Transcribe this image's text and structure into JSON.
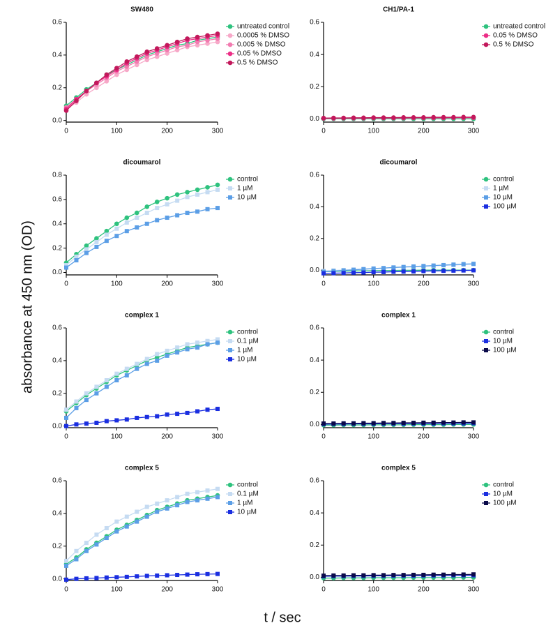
{
  "figure": {
    "ylabel": "absorbance at 450 nm  (OD)",
    "xlabel": "t / sec"
  },
  "chart_data": [
    {
      "type": "line",
      "title": "SW480",
      "legend": "right",
      "x": [
        0,
        20,
        40,
        60,
        80,
        100,
        120,
        140,
        160,
        180,
        200,
        220,
        240,
        260,
        280,
        300
      ],
      "xlim": [
        0,
        300
      ],
      "xticks": [
        0,
        100,
        200,
        300
      ],
      "ylim": [
        -0.01,
        0.6
      ],
      "yticks": [
        {
          "value": 0,
          "label": "0.0"
        },
        0.2,
        0.4,
        0.6
      ],
      "series": [
        {
          "name": "untreated control",
          "color": "#2ec27e",
          "marker": "circle",
          "values": [
            0.09,
            0.14,
            0.19,
            0.23,
            0.28,
            0.31,
            0.34,
            0.37,
            0.4,
            0.42,
            0.44,
            0.46,
            0.47,
            0.49,
            0.5,
            0.51
          ]
        },
        {
          "name": "0.0005 % DMSO",
          "color": "#f7a8c8",
          "marker": "circle",
          "values": [
            0.07,
            0.11,
            0.16,
            0.2,
            0.24,
            0.28,
            0.31,
            0.34,
            0.37,
            0.39,
            0.41,
            0.43,
            0.45,
            0.46,
            0.47,
            0.48
          ]
        },
        {
          "name": "0.005 % DMSO",
          "color": "#f27bb0",
          "marker": "circle",
          "values": [
            0.08,
            0.13,
            0.18,
            0.22,
            0.26,
            0.3,
            0.33,
            0.36,
            0.39,
            0.41,
            0.43,
            0.45,
            0.46,
            0.48,
            0.49,
            0.5
          ]
        },
        {
          "name": "0.05 % DMSO",
          "color": "#ec2d86",
          "marker": "circle",
          "values": [
            0.07,
            0.13,
            0.18,
            0.23,
            0.27,
            0.31,
            0.35,
            0.38,
            0.41,
            0.43,
            0.45,
            0.47,
            0.49,
            0.5,
            0.51,
            0.52
          ]
        },
        {
          "name": "0.5 % DMSO",
          "color": "#c2185b",
          "marker": "circle",
          "values": [
            0.06,
            0.12,
            0.18,
            0.23,
            0.28,
            0.32,
            0.36,
            0.39,
            0.42,
            0.44,
            0.46,
            0.48,
            0.5,
            0.51,
            0.52,
            0.53
          ]
        }
      ]
    },
    {
      "type": "line",
      "title": "CH1/PA-1",
      "legend": "right",
      "x": [
        0,
        20,
        40,
        60,
        80,
        100,
        120,
        140,
        160,
        180,
        200,
        220,
        240,
        260,
        280,
        300
      ],
      "xlim": [
        0,
        300
      ],
      "xticks": [
        0,
        100,
        200,
        300
      ],
      "ylim": [
        -0.02,
        0.6
      ],
      "yticks": [
        {
          "value": 0,
          "label": "0.0"
        },
        0.2,
        0.4,
        0.6
      ],
      "series": [
        {
          "name": "untreated control",
          "color": "#2ec27e",
          "marker": "circle",
          "values": [
            0,
            0,
            0,
            0,
            0,
            0,
            0,
            0,
            0,
            0,
            0,
            0,
            0,
            0,
            0,
            0
          ]
        },
        {
          "name": "0.05 % DMSO",
          "color": "#ec2d86",
          "marker": "circle",
          "values": [
            0.003,
            0.003,
            0.004,
            0.004,
            0.004,
            0.005,
            0.005,
            0.005,
            0.005,
            0.006,
            0.006,
            0.006,
            0.006,
            0.007,
            0.007,
            0.007
          ]
        },
        {
          "name": "0.5 % DMSO",
          "color": "#c2185b",
          "marker": "circle",
          "values": [
            0.005,
            0.006,
            0.006,
            0.007,
            0.007,
            0.008,
            0.008,
            0.008,
            0.009,
            0.009,
            0.009,
            0.01,
            0.01,
            0.01,
            0.011,
            0.011
          ]
        }
      ]
    },
    {
      "type": "line",
      "title": "dicoumarol",
      "legend": "right",
      "x": [
        0,
        20,
        40,
        60,
        80,
        100,
        120,
        140,
        160,
        180,
        200,
        220,
        240,
        260,
        280,
        300
      ],
      "xlim": [
        0,
        300
      ],
      "xticks": [
        0,
        100,
        200,
        300
      ],
      "ylim": [
        -0.02,
        0.8
      ],
      "yticks": [
        {
          "value": 0,
          "label": "0.0"
        },
        0.2,
        0.4,
        0.6,
        0.8
      ],
      "series": [
        {
          "name": "control",
          "color": "#2ec27e",
          "marker": "circle",
          "values": [
            0.08,
            0.15,
            0.22,
            0.28,
            0.34,
            0.4,
            0.45,
            0.49,
            0.54,
            0.58,
            0.61,
            0.64,
            0.66,
            0.68,
            0.7,
            0.72
          ]
        },
        {
          "name": "1 µM",
          "color": "#c5dbf2",
          "marker": "square",
          "values": [
            0.06,
            0.13,
            0.19,
            0.25,
            0.31,
            0.36,
            0.41,
            0.45,
            0.49,
            0.53,
            0.56,
            0.59,
            0.62,
            0.64,
            0.66,
            0.68
          ]
        },
        {
          "name": "10 µM",
          "color": "#5b9ee6",
          "marker": "square",
          "values": [
            0.04,
            0.1,
            0.16,
            0.21,
            0.26,
            0.3,
            0.34,
            0.37,
            0.4,
            0.43,
            0.45,
            0.47,
            0.49,
            0.5,
            0.52,
            0.53
          ]
        }
      ]
    },
    {
      "type": "line",
      "title": "dicoumarol",
      "legend": "right",
      "x": [
        0,
        20,
        40,
        60,
        80,
        100,
        120,
        140,
        160,
        180,
        200,
        220,
        240,
        260,
        280,
        300
      ],
      "xlim": [
        0,
        300
      ],
      "xticks": [
        0,
        100,
        200,
        300
      ],
      "ylim": [
        -0.03,
        0.6
      ],
      "yticks": [
        {
          "value": 0,
          "label": "0.0"
        },
        0.2,
        0.4,
        0.6
      ],
      "series": [
        {
          "name": "control",
          "color": "#2ec27e",
          "marker": "circle",
          "values": [
            -0.01,
            -0.008,
            -0.006,
            -0.005,
            -0.004,
            -0.003,
            -0.002,
            -0.002,
            -0.001,
            -0.001,
            0,
            0,
            0,
            0,
            0,
            0
          ]
        },
        {
          "name": "1 µM",
          "color": "#c5dbf2",
          "marker": "square",
          "values": [
            -0.005,
            -0.002,
            0.001,
            0.004,
            0.007,
            0.01,
            0.013,
            0.016,
            0.018,
            0.021,
            0.024,
            0.027,
            0.03,
            0.032,
            0.035,
            0.038
          ]
        },
        {
          "name": "10 µM",
          "color": "#5b9ee6",
          "marker": "square",
          "values": [
            -0.01,
            -0.006,
            -0.002,
            0.002,
            0.006,
            0.01,
            0.013,
            0.017,
            0.02,
            0.023,
            0.026,
            0.029,
            0.032,
            0.035,
            0.038,
            0.04
          ]
        },
        {
          "name": "100 µM",
          "color": "#1a2ee0",
          "marker": "square",
          "values": [
            -0.02,
            -0.019,
            -0.018,
            -0.016,
            -0.015,
            -0.013,
            -0.012,
            -0.01,
            -0.009,
            -0.008,
            -0.006,
            -0.005,
            -0.004,
            -0.003,
            -0.002,
            -0.001
          ]
        }
      ]
    },
    {
      "type": "line",
      "title": "complex 1",
      "legend": "right",
      "x": [
        0,
        20,
        40,
        60,
        80,
        100,
        120,
        140,
        160,
        180,
        200,
        220,
        240,
        260,
        280,
        300
      ],
      "xlim": [
        0,
        300
      ],
      "xticks": [
        0,
        100,
        200,
        300
      ],
      "ylim": [
        -0.01,
        0.6
      ],
      "yticks": [
        {
          "value": 0,
          "label": "0.0"
        },
        0.2,
        0.4,
        0.6
      ],
      "series": [
        {
          "name": "control",
          "color": "#2ec27e",
          "marker": "circle",
          "values": [
            0.09,
            0.14,
            0.19,
            0.23,
            0.27,
            0.31,
            0.34,
            0.37,
            0.4,
            0.42,
            0.44,
            0.46,
            0.48,
            0.49,
            0.5,
            0.51
          ]
        },
        {
          "name": "0.1 µM",
          "color": "#c5dbf2",
          "marker": "square",
          "values": [
            0.1,
            0.15,
            0.2,
            0.24,
            0.28,
            0.32,
            0.35,
            0.38,
            0.41,
            0.44,
            0.46,
            0.48,
            0.5,
            0.51,
            0.52,
            0.53
          ]
        },
        {
          "name": "1 µM",
          "color": "#5b9ee6",
          "marker": "square",
          "values": [
            0.05,
            0.11,
            0.16,
            0.2,
            0.24,
            0.28,
            0.31,
            0.35,
            0.38,
            0.4,
            0.43,
            0.45,
            0.47,
            0.48,
            0.5,
            0.51
          ]
        },
        {
          "name": "10 µM",
          "color": "#1a2ee0",
          "marker": "square",
          "values": [
            0.0,
            0.01,
            0.015,
            0.02,
            0.03,
            0.035,
            0.04,
            0.05,
            0.055,
            0.06,
            0.07,
            0.075,
            0.08,
            0.09,
            0.1,
            0.105
          ]
        }
      ]
    },
    {
      "type": "line",
      "title": "complex 1",
      "legend": "right",
      "x": [
        0,
        20,
        40,
        60,
        80,
        100,
        120,
        140,
        160,
        180,
        200,
        220,
        240,
        260,
        280,
        300
      ],
      "xlim": [
        0,
        300
      ],
      "xticks": [
        0,
        100,
        200,
        300
      ],
      "ylim": [
        -0.02,
        0.6
      ],
      "yticks": [
        {
          "value": 0,
          "label": "0.0"
        },
        0.2,
        0.4,
        0.6
      ],
      "series": [
        {
          "name": "control",
          "color": "#2ec27e",
          "marker": "circle",
          "values": [
            -0.004,
            -0.004,
            -0.003,
            -0.003,
            -0.003,
            -0.002,
            -0.002,
            -0.002,
            -0.002,
            -0.001,
            -0.001,
            -0.001,
            -0.001,
            0,
            0,
            0
          ]
        },
        {
          "name": "10 µM",
          "color": "#1a2ee0",
          "marker": "square",
          "values": [
            0.002,
            0.003,
            0.003,
            0.004,
            0.004,
            0.004,
            0.005,
            0.005,
            0.005,
            0.006,
            0.006,
            0.006,
            0.007,
            0.007,
            0.007,
            0.008
          ]
        },
        {
          "name": "100 µM",
          "color": "#0a0a4a",
          "marker": "square",
          "values": [
            0.006,
            0.006,
            0.007,
            0.007,
            0.008,
            0.008,
            0.009,
            0.009,
            0.01,
            0.01,
            0.011,
            0.011,
            0.012,
            0.012,
            0.013,
            0.013
          ]
        }
      ]
    },
    {
      "type": "line",
      "title": "complex 5",
      "legend": "right",
      "x": [
        0,
        20,
        40,
        60,
        80,
        100,
        120,
        140,
        160,
        180,
        200,
        220,
        240,
        260,
        280,
        300
      ],
      "xlim": [
        0,
        300
      ],
      "xticks": [
        0,
        100,
        200,
        300
      ],
      "ylim": [
        -0.01,
        0.6
      ],
      "yticks": [
        {
          "value": 0,
          "label": "0.0"
        },
        0.2,
        0.4,
        0.6
      ],
      "series": [
        {
          "name": "control",
          "color": "#2ec27e",
          "marker": "circle",
          "values": [
            0.09,
            0.13,
            0.18,
            0.22,
            0.26,
            0.3,
            0.33,
            0.36,
            0.39,
            0.42,
            0.44,
            0.46,
            0.48,
            0.49,
            0.5,
            0.51
          ]
        },
        {
          "name": "0.1 µM",
          "color": "#c5dbf2",
          "marker": "square",
          "values": [
            0.11,
            0.17,
            0.22,
            0.27,
            0.31,
            0.35,
            0.38,
            0.41,
            0.44,
            0.46,
            0.48,
            0.5,
            0.52,
            0.53,
            0.54,
            0.55
          ]
        },
        {
          "name": "1 µM",
          "color": "#5b9ee6",
          "marker": "square",
          "values": [
            0.08,
            0.12,
            0.17,
            0.21,
            0.25,
            0.29,
            0.32,
            0.35,
            0.38,
            0.41,
            0.43,
            0.45,
            0.47,
            0.48,
            0.49,
            0.5
          ]
        },
        {
          "name": "10 µM",
          "color": "#1a2ee0",
          "marker": "square",
          "values": [
            -0.005,
            0.0,
            0.003,
            0.005,
            0.008,
            0.01,
            0.012,
            0.015,
            0.018,
            0.02,
            0.022,
            0.024,
            0.026,
            0.028,
            0.029,
            0.03
          ]
        }
      ]
    },
    {
      "type": "line",
      "title": "complex 5",
      "legend": "right",
      "x": [
        0,
        20,
        40,
        60,
        80,
        100,
        120,
        140,
        160,
        180,
        200,
        220,
        240,
        260,
        280,
        300
      ],
      "xlim": [
        0,
        300
      ],
      "xticks": [
        0,
        100,
        200,
        300
      ],
      "ylim": [
        -0.02,
        0.6
      ],
      "yticks": [
        {
          "value": 0,
          "label": "0.0"
        },
        0.2,
        0.4,
        0.6
      ],
      "series": [
        {
          "name": "control",
          "color": "#2ec27e",
          "marker": "circle",
          "values": [
            -0.005,
            -0.005,
            -0.004,
            -0.004,
            -0.004,
            -0.003,
            -0.003,
            -0.003,
            -0.003,
            -0.002,
            -0.002,
            -0.002,
            -0.002,
            -0.002,
            -0.001,
            -0.001
          ]
        },
        {
          "name": "10 µM",
          "color": "#1a2ee0",
          "marker": "square",
          "values": [
            0.006,
            0.007,
            0.007,
            0.008,
            0.008,
            0.009,
            0.009,
            0.01,
            0.01,
            0.01,
            0.011,
            0.011,
            0.011,
            0.012,
            0.012,
            0.012
          ]
        },
        {
          "name": "100 µM",
          "color": "#0a0a4a",
          "marker": "square",
          "values": [
            0.01,
            0.011,
            0.011,
            0.012,
            0.012,
            0.013,
            0.013,
            0.014,
            0.014,
            0.015,
            0.015,
            0.016,
            0.016,
            0.017,
            0.017,
            0.018
          ]
        }
      ]
    }
  ]
}
